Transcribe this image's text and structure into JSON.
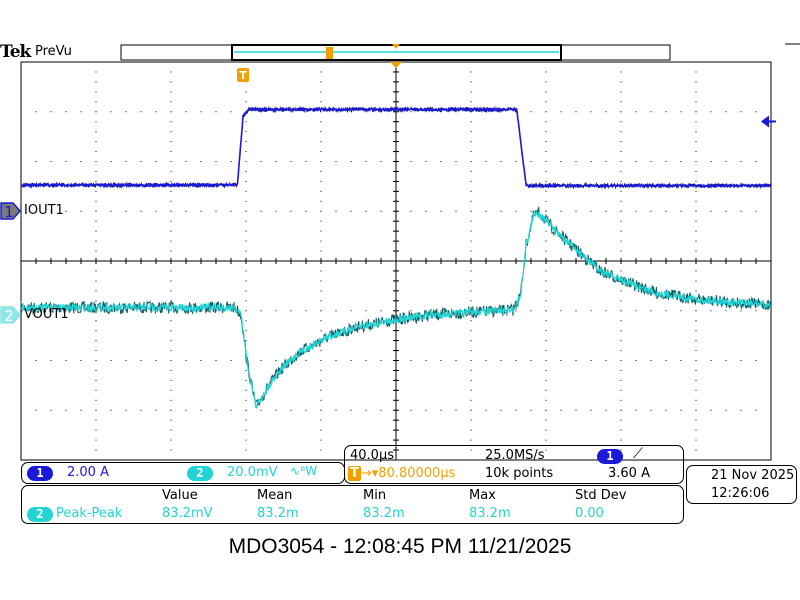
{
  "header": {
    "brand": "Tek",
    "mode": "PreVu"
  },
  "channels": [
    {
      "number": "1",
      "label": "IOUT1",
      "scale": "2.00 A",
      "color": "#1a1ad8"
    },
    {
      "number": "2",
      "label": "VOUT1",
      "scale": "20.0mV",
      "bandwidth_icon": "bw-limit-icon",
      "bandwidth_label": "ᴮW",
      "color": "#22d4d4"
    }
  ],
  "timebase": {
    "horizontal_scale": "40.0µs",
    "sample_rate": "25.0MS/s",
    "trigger_position": "80.80000µs",
    "record_length": "10k points",
    "trigger_source": "1",
    "trigger_slope_icon": "rising-edge-icon",
    "trigger_level": "3.60 A",
    "trigger_color": "#f0a000"
  },
  "datetime": {
    "date": "21 Nov 2025",
    "time": "12:26:06"
  },
  "measurements": {
    "headers": [
      "Value",
      "Mean",
      "Min",
      "Max",
      "Std Dev"
    ],
    "rows": [
      {
        "channel": "2",
        "name": "Peak-Peak",
        "value": "83.2mV",
        "mean": "83.2m",
        "min": "83.2m",
        "max": "83.2m",
        "std_dev": "0.00"
      }
    ]
  },
  "footer": "MDO3054 - 12:08:45 PM   11/21/2025",
  "chart_data": {
    "type": "line",
    "xlabel": "",
    "ylabel": "",
    "x_units": "µs from trigger",
    "xlim": [
      -118.4,
      281.6
    ],
    "x_divisions": 10,
    "y_divisions": 8,
    "grid": true,
    "series": [
      {
        "name": "IOUT1",
        "channel": "1",
        "units": "A",
        "scale_per_div": 2.0,
        "points": [
          [
            -118.4,
            1.04
          ],
          [
            -3,
            1.04
          ],
          [
            0,
            3.8
          ],
          [
            3,
            4.08
          ],
          [
            146,
            4.08
          ],
          [
            151,
            1.02
          ],
          [
            281.6,
            1.02
          ]
        ]
      },
      {
        "name": "VOUT1",
        "channel": "2",
        "units": "mV",
        "scale_per_div": 20.0,
        "points": [
          [
            -118.4,
            3
          ],
          [
            -4,
            3
          ],
          [
            -1,
            0
          ],
          [
            2,
            -18
          ],
          [
            5,
            -30
          ],
          [
            7,
            -37
          ],
          [
            10,
            -33
          ],
          [
            15,
            -27
          ],
          [
            20,
            -22
          ],
          [
            30,
            -15
          ],
          [
            45,
            -9
          ],
          [
            60,
            -5
          ],
          [
            80,
            -2
          ],
          [
            100,
            0
          ],
          [
            120,
            1
          ],
          [
            144,
            2
          ],
          [
            148,
            8
          ],
          [
            151,
            28
          ],
          [
            155,
            40
          ],
          [
            158,
            41
          ],
          [
            165,
            35
          ],
          [
            175,
            28
          ],
          [
            190,
            18
          ],
          [
            205,
            13
          ],
          [
            220,
            9
          ],
          [
            245,
            6
          ],
          [
            281.6,
            4
          ]
        ]
      }
    ]
  }
}
